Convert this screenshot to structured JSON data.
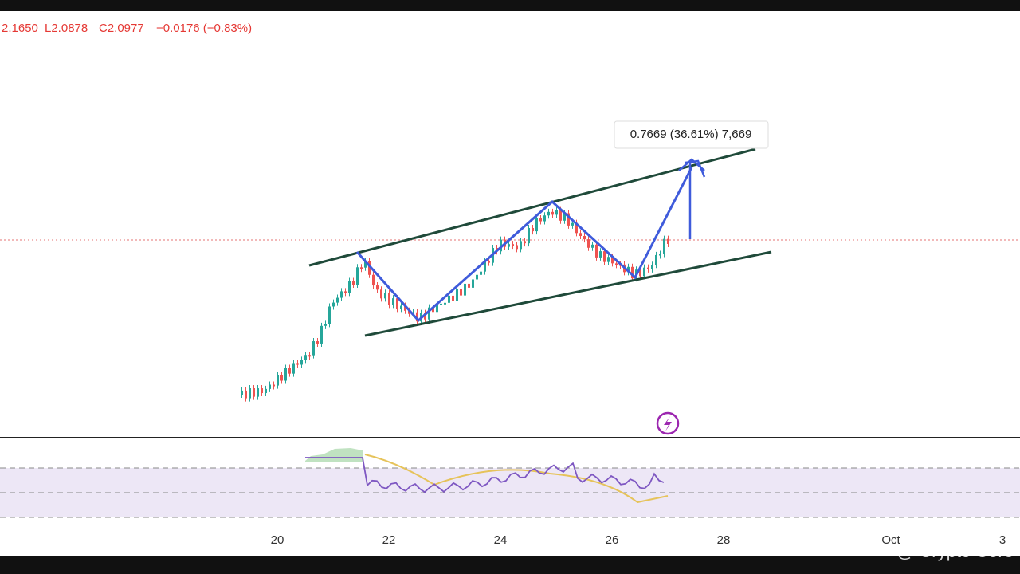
{
  "header": {
    "high": "2.1650",
    "low": "L2.0878",
    "close": "C2.0977",
    "change": "−0.0176 (−0.83%)"
  },
  "measure": {
    "label": "0.7669 (36.61%) 7,669"
  },
  "x_axis": {
    "labels": [
      "20",
      "22",
      "24",
      "26",
      "28",
      "Oct",
      "3"
    ]
  },
  "watermark": "@ Crypto Core"
}
